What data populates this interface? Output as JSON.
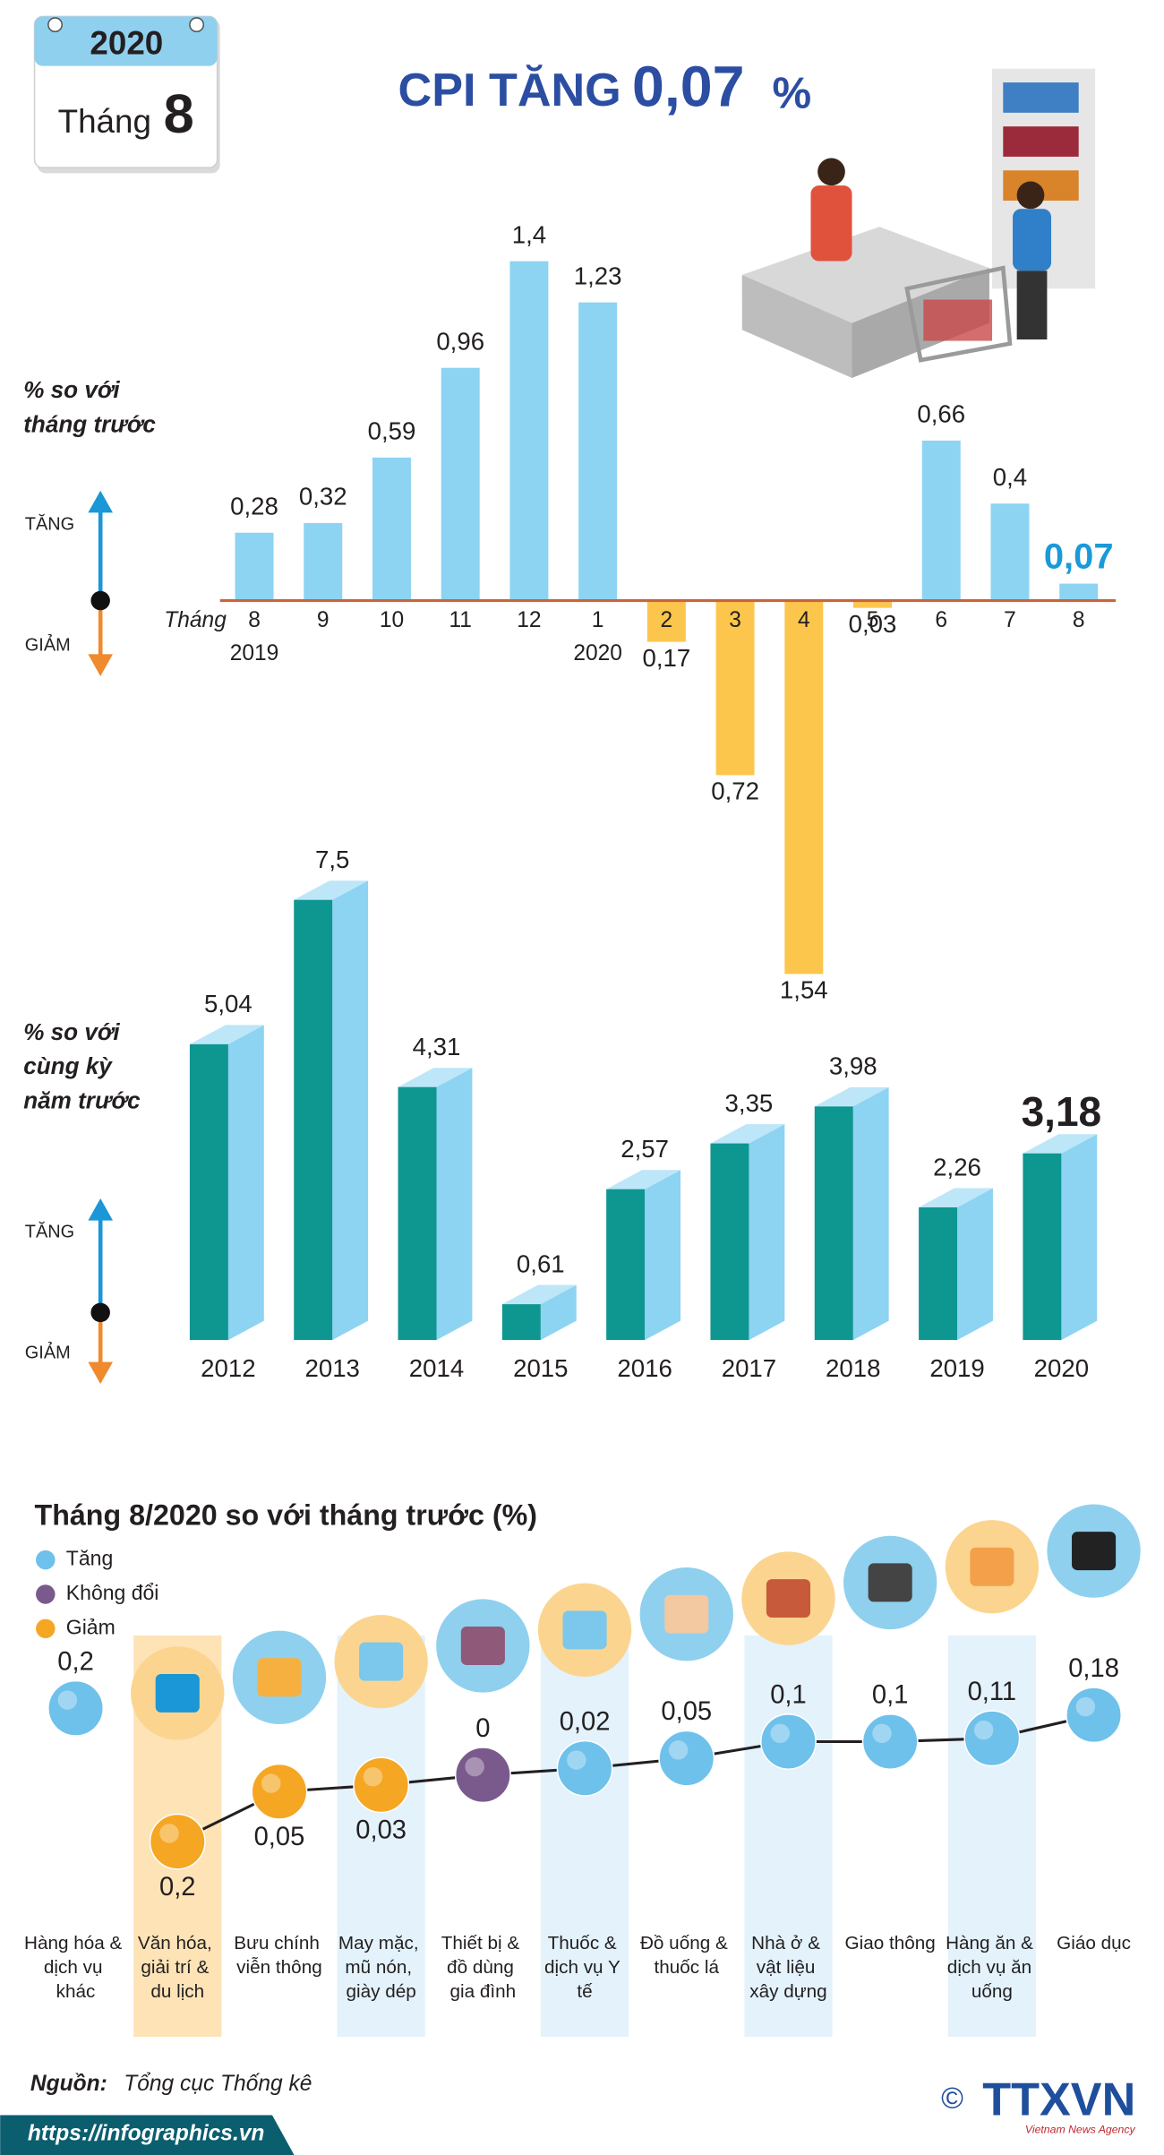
{
  "calendar": {
    "year": "2020",
    "month_word": "Tháng",
    "month": "8"
  },
  "title": {
    "prefix": "CPI TĂNG",
    "value": "0,07",
    "unit": "%"
  },
  "chart_data": [
    {
      "type": "bar",
      "ylabel_lines": [
        "% so với",
        "tháng trước"
      ],
      "up_label": "TĂNG",
      "down_label": "GIẢM",
      "xlabel": "Tháng",
      "categories": [
        "8",
        "9",
        "10",
        "11",
        "12",
        "1",
        "2",
        "3",
        "4",
        "5",
        "6",
        "7",
        "8"
      ],
      "years": [
        "2019",
        null,
        null,
        null,
        null,
        "2020",
        null,
        null,
        null,
        null,
        null,
        null,
        null
      ],
      "values": [
        0.28,
        0.32,
        0.59,
        0.96,
        1.4,
        1.23,
        -0.17,
        -0.72,
        -1.54,
        -0.03,
        0.66,
        0.4,
        0.07
      ],
      "value_labels": [
        "0,28",
        "0,32",
        "0,59",
        "0,96",
        "1,4",
        "1,23",
        "0,17",
        "0,72",
        "1,54",
        "0,03",
        "0,66",
        "0,4",
        "0,07"
      ],
      "color": "#8dd3f2",
      "negative_color": "#fcc64c",
      "emphasis_color": "#1a9ad8",
      "axis_color": "#c9643a",
      "ylim": [
        -1.6,
        1.6
      ]
    },
    {
      "type": "bar3d",
      "ylabel_lines": [
        "% so với",
        "cùng kỳ",
        "năm trước"
      ],
      "up_label": "TĂNG",
      "down_label": "GIẢM",
      "categories": [
        "2012",
        "2013",
        "2014",
        "2015",
        "2016",
        "2017",
        "2018",
        "2019",
        "2020"
      ],
      "values": [
        5.04,
        7.5,
        4.31,
        0.61,
        2.57,
        3.35,
        3.98,
        2.26,
        3.18
      ],
      "value_labels": [
        "5,04",
        "7,5",
        "4,31",
        "0,61",
        "2,57",
        "3,35",
        "3,98",
        "2,26",
        "3,18"
      ],
      "color": "#0e9690",
      "side_color": "#8dd3f2",
      "top_color": "#bde6f8",
      "ylim": [
        0,
        8
      ]
    },
    {
      "type": "dot",
      "title": "Tháng 8/2020 so với tháng trước (%)",
      "legend": [
        {
          "name": "Tăng",
          "color": "#6ec1ea"
        },
        {
          "name": "Không đổi",
          "color": "#7a5a8c"
        },
        {
          "name": "Giảm",
          "color": "#f5a623"
        }
      ],
      "categories": [
        "Hàng hóa & dịch vụ khác",
        "Văn hóa, giải trí & du lịch",
        "Bưu chính viễn thông",
        "May mặc, mũ nón, giày dép",
        "Thiết bị & đồ dùng gia đình",
        "Thuốc & dịch vụ Y tế",
        "Đồ uống & thuốc lá",
        "Nhà ở & vật liệu xây dựng",
        "Giao thông",
        "Hàng ăn & dịch vụ ăn uống",
        "Giáo dục"
      ],
      "values": [
        0.2,
        -0.2,
        -0.05,
        -0.03,
        0,
        0.02,
        0.05,
        0.1,
        0.1,
        0.11,
        0.18
      ],
      "value_labels": [
        "0,2",
        "0,2",
        "0,05",
        "0,03",
        "0",
        "0,02",
        "0,05",
        "0,1",
        "0,1",
        "0,11",
        "0,18"
      ],
      "ylim": [
        -0.2,
        0.2
      ]
    }
  ],
  "footer": {
    "source_label": "Nguồn:",
    "source": "Tổng cục Thống kê",
    "url": "https://infographics.vn",
    "copyright": "©",
    "logo": "TTXVN",
    "agency": "Vietnam News Agency"
  }
}
